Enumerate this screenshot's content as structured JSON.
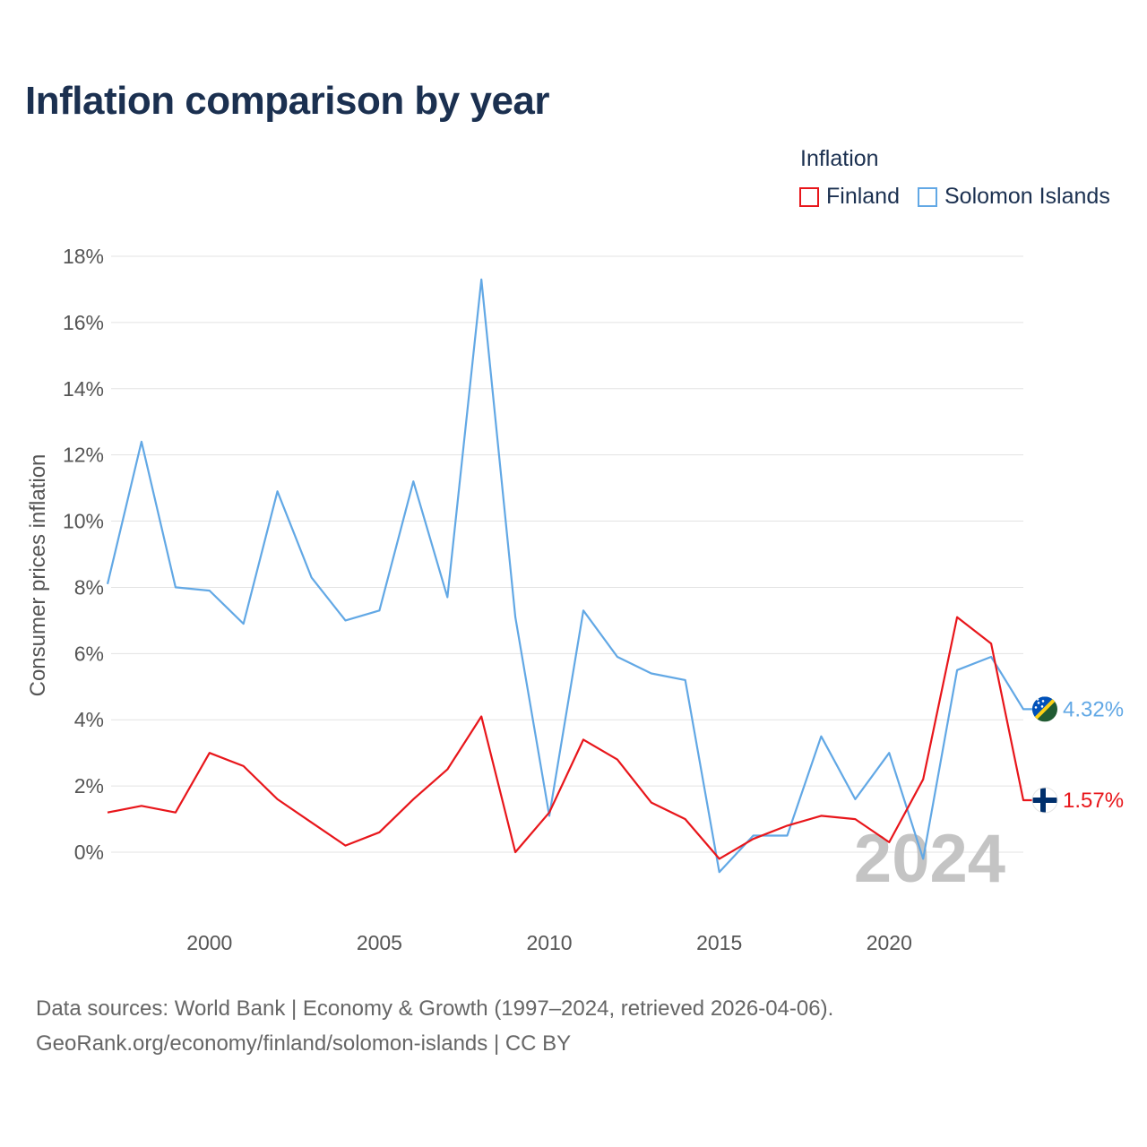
{
  "title": "Inflation comparison by year",
  "legend": {
    "title": "Inflation",
    "items": [
      {
        "label": "Finland",
        "color": "#e8161b"
      },
      {
        "label": "Solomon Islands",
        "color": "#62a8e5"
      }
    ]
  },
  "footer": {
    "line1": "Data sources: World Bank | Economy & Growth (1997–2024, retrieved 2026-04-06).",
    "line2": "GeoRank.org/economy/finland/solomon-islands | CC BY"
  },
  "chart_data": {
    "type": "line",
    "ylabel": "Consumer prices inflation",
    "xlabel": "",
    "ylim": [
      -1.5,
      18
    ],
    "xlim": [
      1997,
      2024
    ],
    "yticks": [
      0,
      2,
      4,
      6,
      8,
      10,
      12,
      14,
      16,
      18
    ],
    "ytick_labels": [
      "0%",
      "2%",
      "4%",
      "6%",
      "8%",
      "10%",
      "12%",
      "14%",
      "16%",
      "18%"
    ],
    "xticks": [
      2000,
      2005,
      2010,
      2015,
      2020
    ],
    "xtick_labels": [
      "2000",
      "2005",
      "2010",
      "2015",
      "2020"
    ],
    "grid": true,
    "year_watermark": "2024",
    "x": [
      1997,
      1998,
      1999,
      2000,
      2001,
      2002,
      2003,
      2004,
      2005,
      2006,
      2007,
      2008,
      2009,
      2010,
      2011,
      2012,
      2013,
      2014,
      2015,
      2016,
      2017,
      2018,
      2019,
      2020,
      2021,
      2022,
      2023,
      2024
    ],
    "series": [
      {
        "name": "Finland",
        "color": "#e8161b",
        "end_label": "1.57%",
        "flag": "finland-flag",
        "values": [
          1.2,
          1.4,
          1.2,
          3.0,
          2.6,
          1.6,
          0.9,
          0.2,
          0.6,
          1.6,
          2.5,
          4.1,
          0.0,
          1.2,
          3.4,
          2.8,
          1.5,
          1.0,
          -0.2,
          0.4,
          0.8,
          1.1,
          1.0,
          0.3,
          2.2,
          7.1,
          6.3,
          1.57
        ]
      },
      {
        "name": "Solomon Islands",
        "color": "#62a8e5",
        "end_label": "4.32%",
        "flag": "solomon-islands-flag",
        "values": [
          8.1,
          12.4,
          8.0,
          7.9,
          6.9,
          10.9,
          8.3,
          7.0,
          7.3,
          11.2,
          7.7,
          17.3,
          7.1,
          1.1,
          7.3,
          5.9,
          5.4,
          5.2,
          -0.6,
          0.5,
          0.5,
          3.5,
          1.6,
          3.0,
          -0.2,
          5.5,
          5.9,
          4.32
        ]
      }
    ]
  }
}
